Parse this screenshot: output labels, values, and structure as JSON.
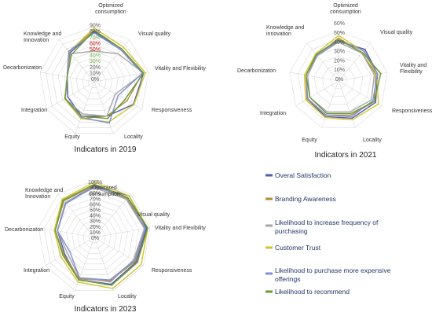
{
  "chart_data": [
    {
      "type": "radar",
      "title": "Indicators in 2019",
      "axes": [
        [
          "Optimized",
          "consumption"
        ],
        [
          "Visual quality"
        ],
        [
          "Vitality and Flexibility"
        ],
        [
          "Responsiveness"
        ],
        [
          "Locality"
        ],
        [
          "Equity"
        ],
        [
          "Integration"
        ],
        [
          "Decarbonizaton"
        ],
        [
          "Knowledge and",
          "Innovation"
        ]
      ],
      "ticks": [
        "0%",
        "10%",
        "20%",
        "30%",
        "40%",
        "50%",
        "60%",
        "70%",
        "80%",
        "90%"
      ],
      "tick_colors": [
        "#595959",
        "#595959",
        "#595959",
        "#70ad47",
        "#70ad47",
        "#c00000",
        "#c00000",
        "#70ad47",
        "#595959",
        "#595959"
      ],
      "rmax": 90,
      "series": [
        {
          "values": [
            82,
            70,
            82,
            74,
            60,
            60,
            50,
            45,
            62
          ]
        },
        {
          "values": [
            84,
            70,
            80,
            62,
            60,
            64,
            55,
            45,
            65
          ]
        },
        {
          "values": [
            50,
            60,
            82,
            40,
            60,
            56,
            55,
            45,
            60
          ]
        },
        {
          "values": [
            88,
            74,
            85,
            75,
            70,
            64,
            56,
            45,
            64
          ]
        },
        {
          "values": [
            80,
            68,
            80,
            45,
            72,
            62,
            55,
            45,
            65
          ]
        },
        {
          "values": [
            84,
            70,
            82,
            58,
            64,
            60,
            55,
            45,
            58
          ]
        }
      ]
    },
    {
      "type": "radar",
      "title": "Indicators in 2021",
      "axes": [
        [
          "Optimized",
          "consumption"
        ],
        [
          "Visual quality"
        ],
        [
          "Vitality and",
          "Flexibility"
        ],
        [
          "Responsiveness"
        ],
        [
          "Locality"
        ],
        [
          "Equity"
        ],
        [
          "Integration"
        ],
        [
          "Decarbonizaton"
        ],
        [
          "Knowledge and",
          "innovation"
        ]
      ],
      "ticks": [
        "0%",
        "10%",
        "20%",
        "30%",
        "40%",
        "50%",
        "60%"
      ],
      "rmax": 60,
      "series": [
        {
          "values": [
            48,
            50,
            48,
            52,
            48,
            46,
            44,
            40,
            42
          ]
        },
        {
          "values": [
            52,
            44,
            46,
            50,
            44,
            44,
            44,
            40,
            40
          ]
        },
        {
          "values": [
            47,
            44,
            44,
            46,
            40,
            40,
            40,
            38,
            40
          ]
        },
        {
          "values": [
            55,
            47,
            47,
            56,
            50,
            47,
            46,
            42,
            43
          ]
        },
        {
          "values": [
            49,
            48,
            48,
            48,
            46,
            44,
            43,
            40,
            41
          ]
        },
        {
          "values": [
            50,
            45,
            52,
            50,
            42,
            42,
            40,
            40,
            42
          ]
        }
      ]
    },
    {
      "type": "radar",
      "title": "Indicators in 2023",
      "axes": [
        [
          "Optimized",
          "consumption"
        ],
        [
          "Visual quality"
        ],
        [
          "Vitality and Flexibility"
        ],
        [
          "Responsiveness"
        ],
        [
          "Locality"
        ],
        [
          "Equity"
        ],
        [
          "Integration"
        ],
        [
          "Decarbonizaton"
        ],
        [
          "Knowledge and",
          "Innovation"
        ]
      ],
      "ticks": [
        "0%",
        "10%",
        "20%",
        "30%",
        "40%",
        "50%",
        "60%",
        "70%",
        "80%",
        "90%",
        "100%"
      ],
      "rmax": 100,
      "series": [
        {
          "values": [
            90,
            96,
            94,
            86,
            88,
            80,
            60,
            66,
            80
          ]
        },
        {
          "values": [
            92,
            90,
            92,
            84,
            82,
            78,
            62,
            70,
            84
          ]
        },
        {
          "values": [
            88,
            88,
            90,
            80,
            84,
            76,
            55,
            66,
            80
          ]
        },
        {
          "values": [
            98,
            96,
            96,
            96,
            96,
            84,
            68,
            72,
            88
          ]
        },
        {
          "values": [
            90,
            92,
            92,
            82,
            80,
            76,
            50,
            66,
            78
          ]
        },
        {
          "values": [
            94,
            92,
            96,
            88,
            90,
            80,
            64,
            70,
            86
          ]
        }
      ]
    }
  ],
  "legend": {
    "items": [
      {
        "label": "Overal Satisfaction",
        "color": "#4f5ca8"
      },
      {
        "label": "Branding Awareness",
        "color": "#b08d3c"
      },
      {
        "label": "Likelihood to increase frequency of purchasing",
        "color": "#a6a6a6"
      },
      {
        "label": "Customer Trust",
        "color": "#d4c52a"
      },
      {
        "label": "Likelihood to purchase more expensive offerings",
        "color": "#7f8fd6"
      },
      {
        "label": "Likelihood to recommend",
        "color": "#6b9a3a"
      }
    ]
  }
}
